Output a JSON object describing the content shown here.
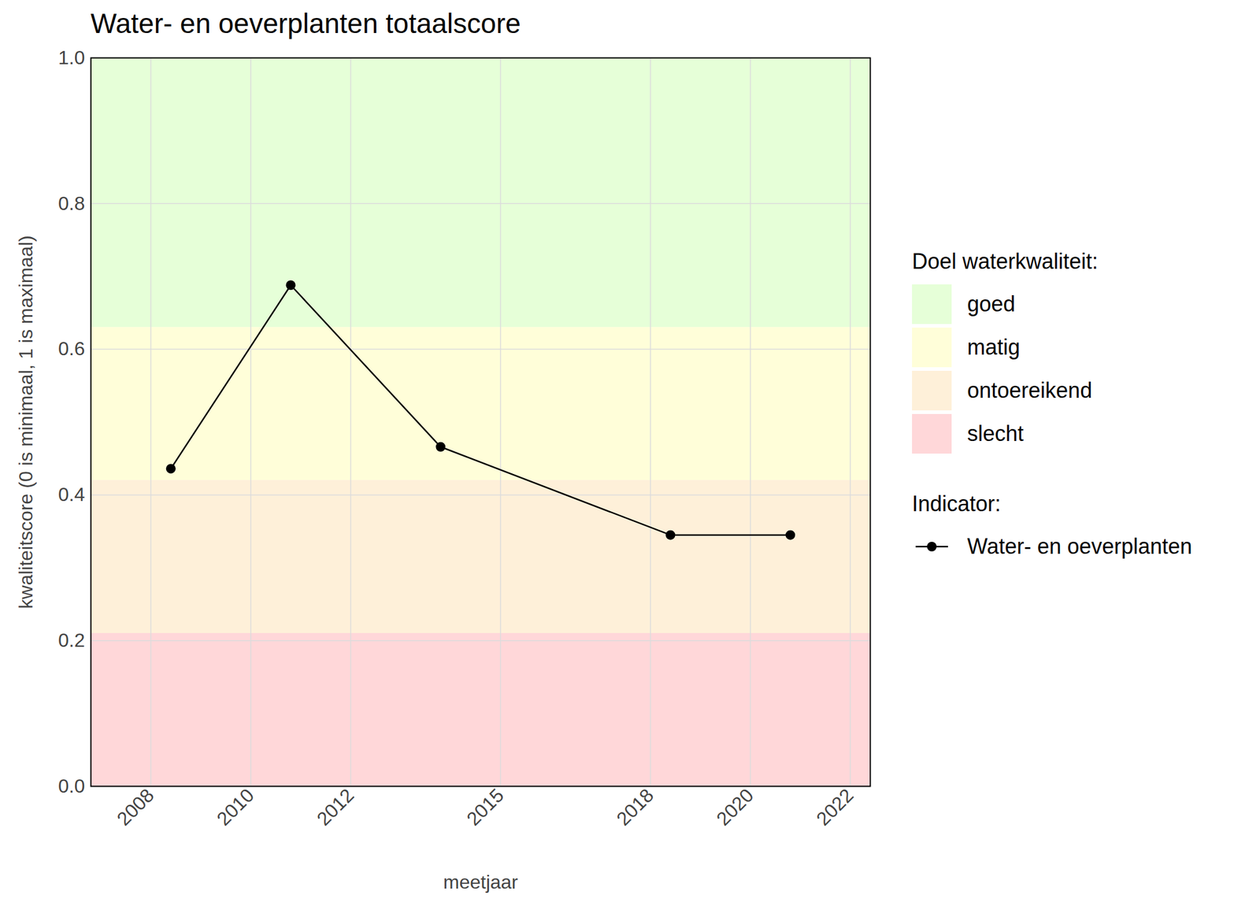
{
  "chart_data": {
    "type": "line",
    "title": "Water- en oeverplanten totaalscore",
    "x_label": "meetjaar",
    "y_label": "kwaliteitscore (0 is minimaal, 1 is maximaal)",
    "x": [
      2008.4,
      2010.8,
      2013.8,
      2018.4,
      2020.8
    ],
    "series": [
      {
        "name": "Water- en oeverplanten",
        "color": "#000000",
        "marker": "circle",
        "line_style": "solid",
        "values": [
          0.436,
          0.688,
          0.466,
          0.345,
          0.345
        ]
      }
    ],
    "xlim": [
      2006.8,
      2022.4
    ],
    "xticks": [
      2008,
      2010,
      2012,
      2015,
      2018,
      2020,
      2022
    ],
    "ylim": [
      0,
      1
    ],
    "yticks": [
      {
        "value": 0,
        "label": "0.0"
      },
      {
        "value": 0.2,
        "label": "0.2"
      },
      {
        "value": 0.4,
        "label": "0.4"
      },
      {
        "value": 0.6,
        "label": "0.6"
      },
      {
        "value": 0.8,
        "label": "0.8"
      },
      {
        "value": 1,
        "label": "1.0"
      }
    ],
    "grid": true,
    "legend": "right",
    "band_legend_title": "Doel waterkwaliteit:",
    "legend_title": "Indicator:",
    "bands": [
      {
        "name": "goed",
        "from": 0.63,
        "to": 1,
        "color": "#e6ffd8"
      },
      {
        "name": "matig",
        "from": 0.42,
        "to": 0.63,
        "color": "#fffed9"
      },
      {
        "name": "ontoereikend",
        "from": 0.21,
        "to": 0.42,
        "color": "#fef0d9"
      },
      {
        "name": "slecht",
        "from": 0,
        "to": 0.21,
        "color": "#ffd7d9"
      }
    ]
  }
}
